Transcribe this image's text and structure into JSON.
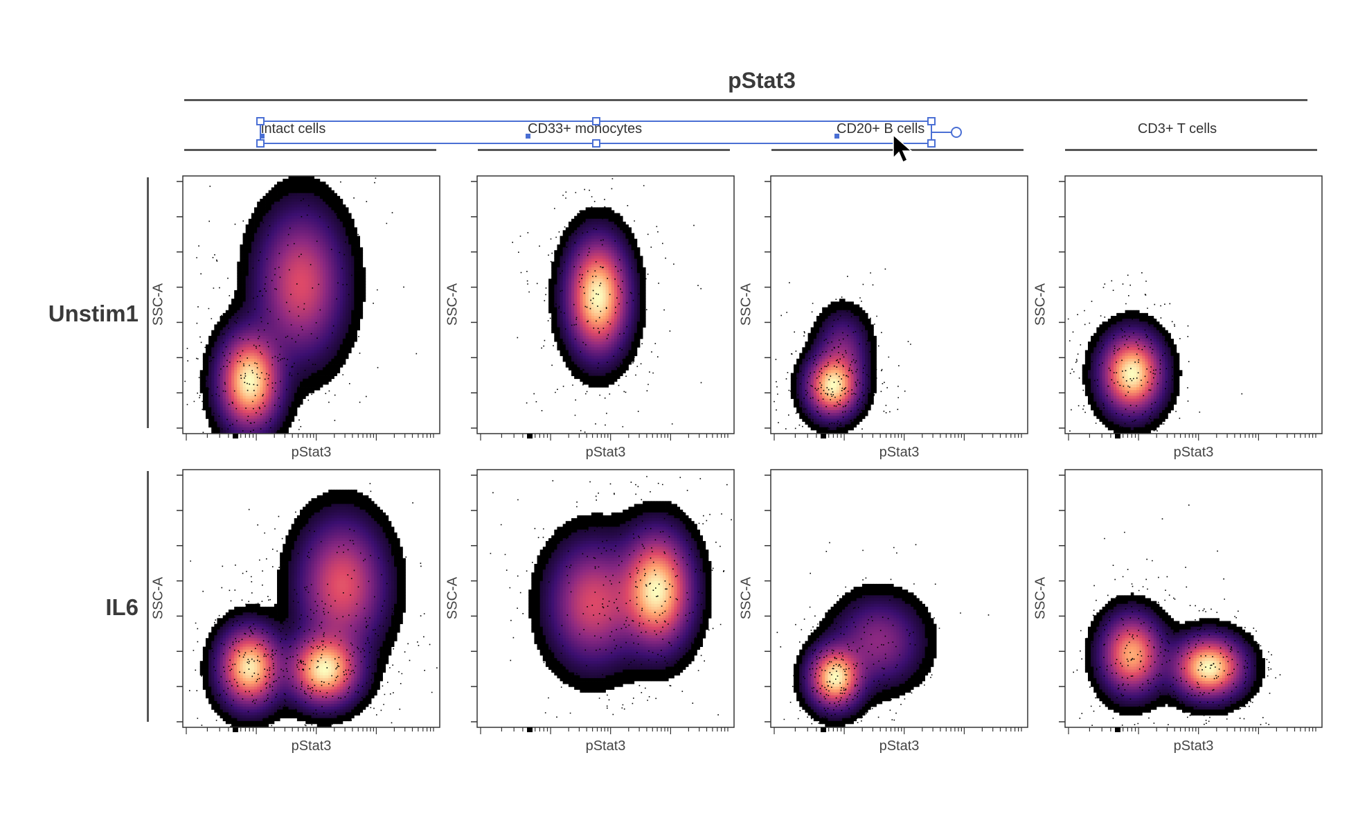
{
  "header": {
    "title": "pStat3"
  },
  "columns": [
    {
      "label": "intact cells"
    },
    {
      "label": "CD33+ monocytes"
    },
    {
      "label": "CD20+ B cells"
    },
    {
      "label": "CD3+ T cells"
    }
  ],
  "rows": [
    {
      "label": "Unstim1"
    },
    {
      "label": "IL6"
    }
  ],
  "axes": {
    "x_label": "pStat3",
    "y_label": "SSC-A"
  },
  "colors": {
    "accent_selection": "#4a6fd4",
    "axis": "#333333",
    "heatmap": [
      "#000000",
      "#3b0f70",
      "#8c2981",
      "#de4968",
      "#fe9f6d",
      "#fcfdbf"
    ]
  },
  "chart_data": {
    "type": "scatter",
    "style": "density-heatmap",
    "xlabel": "pStat3",
    "ylabel": "SSC-A",
    "scale": "log",
    "panels": [
      {
        "row": "Unstim1",
        "column": "intact cells",
        "clusters": [
          {
            "cx": 0.26,
            "cy": 0.8,
            "sx": 0.07,
            "sy": 0.11,
            "w": 1.0
          },
          {
            "cx": 0.46,
            "cy": 0.42,
            "sx": 0.1,
            "sy": 0.17,
            "w": 0.55
          }
        ]
      },
      {
        "row": "Unstim1",
        "column": "CD33+ monocytes",
        "clusters": [
          {
            "cx": 0.47,
            "cy": 0.47,
            "sx": 0.07,
            "sy": 0.13,
            "w": 1.0
          }
        ]
      },
      {
        "row": "Unstim1",
        "column": "CD20+ B cells",
        "clusters": [
          {
            "cx": 0.24,
            "cy": 0.82,
            "sx": 0.06,
            "sy": 0.07,
            "w": 1.0
          },
          {
            "cx": 0.28,
            "cy": 0.68,
            "sx": 0.06,
            "sy": 0.09,
            "w": 0.3
          }
        ]
      },
      {
        "row": "Unstim1",
        "column": "CD3+ T cells",
        "clusters": [
          {
            "cx": 0.26,
            "cy": 0.77,
            "sx": 0.07,
            "sy": 0.09,
            "w": 1.0
          }
        ]
      },
      {
        "row": "IL6",
        "column": "intact cells",
        "clusters": [
          {
            "cx": 0.26,
            "cy": 0.77,
            "sx": 0.07,
            "sy": 0.09,
            "w": 1.0
          },
          {
            "cx": 0.55,
            "cy": 0.78,
            "sx": 0.08,
            "sy": 0.08,
            "w": 1.0
          },
          {
            "cx": 0.62,
            "cy": 0.45,
            "sx": 0.1,
            "sy": 0.15,
            "w": 0.6
          }
        ]
      },
      {
        "row": "IL6",
        "column": "CD33+ monocytes",
        "clusters": [
          {
            "cx": 0.7,
            "cy": 0.47,
            "sx": 0.08,
            "sy": 0.13,
            "w": 1.0
          },
          {
            "cx": 0.45,
            "cy": 0.52,
            "sx": 0.1,
            "sy": 0.14,
            "w": 0.55
          }
        ]
      },
      {
        "row": "IL6",
        "column": "CD20+ B cells",
        "clusters": [
          {
            "cx": 0.25,
            "cy": 0.81,
            "sx": 0.06,
            "sy": 0.07,
            "w": 1.0
          },
          {
            "cx": 0.42,
            "cy": 0.67,
            "sx": 0.1,
            "sy": 0.1,
            "w": 0.35
          }
        ]
      },
      {
        "row": "IL6",
        "column": "CD3+ T cells",
        "clusters": [
          {
            "cx": 0.26,
            "cy": 0.72,
            "sx": 0.07,
            "sy": 0.09,
            "w": 0.8
          },
          {
            "cx": 0.56,
            "cy": 0.77,
            "sx": 0.08,
            "sy": 0.07,
            "w": 1.0
          }
        ]
      }
    ]
  }
}
